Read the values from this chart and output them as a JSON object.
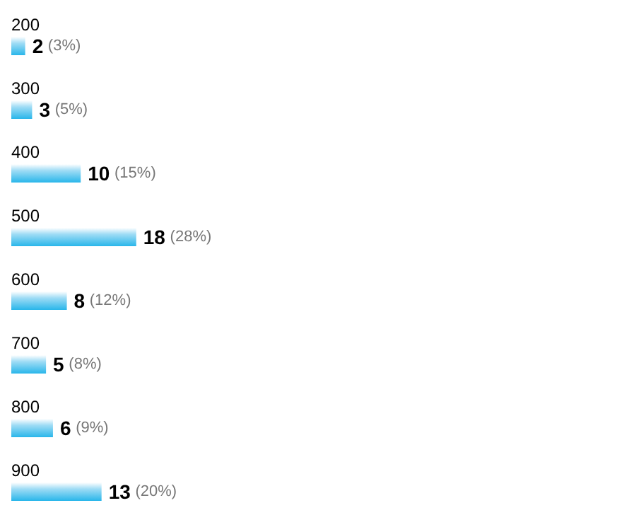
{
  "chart_data": {
    "type": "bar",
    "orientation": "horizontal",
    "categories": [
      "200",
      "300",
      "400",
      "500",
      "600",
      "700",
      "800",
      "900"
    ],
    "values": [
      2,
      3,
      10,
      18,
      8,
      5,
      6,
      13
    ],
    "value_labels": [
      "2 (3%)",
      "3 (5%)",
      "10 (15%)",
      "18 (28%)",
      "8 (12%)",
      "5 (8%)",
      "6 (9%)",
      "13 (20%)"
    ],
    "color": "#29b6ea"
  }
}
